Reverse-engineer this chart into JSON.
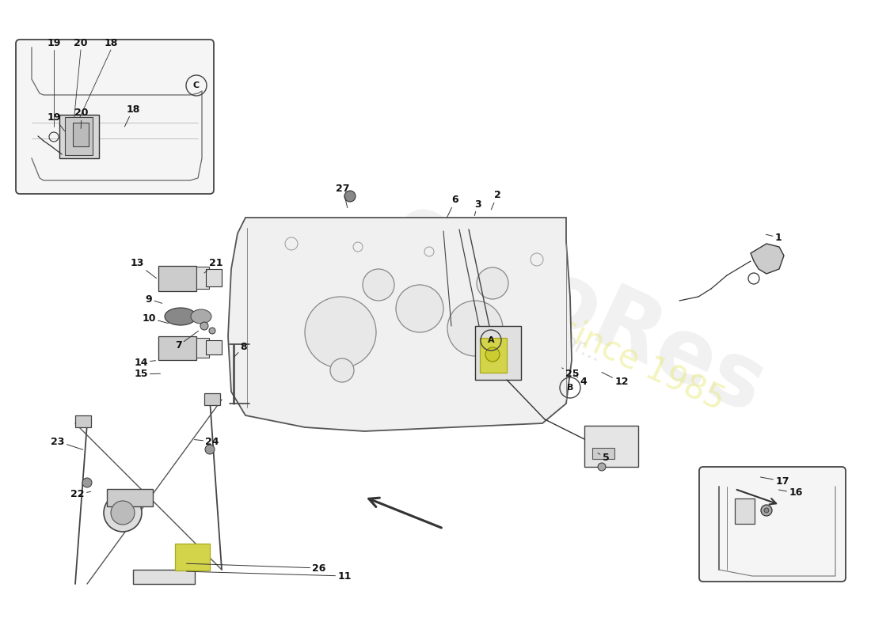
{
  "background_color": "#ffffff",
  "watermark_text": "eufoRes",
  "watermark_year": "since 1985",
  "watermark_passion": "a passion for...",
  "circle_labels": {
    "A": [
      620,
      430
    ],
    "B": [
      720,
      490
    ],
    "C": [
      248,
      108
    ]
  },
  "part_positions": {
    "1": [
      983,
      300,
      962,
      295
    ],
    "2": [
      628,
      247,
      618,
      270
    ],
    "3": [
      603,
      258,
      598,
      278
    ],
    "4": [
      737,
      482,
      720,
      470
    ],
    "5": [
      765,
      578,
      750,
      570
    ],
    "6": [
      575,
      253,
      562,
      280
    ],
    "7": [
      225,
      437,
      255,
      415
    ],
    "8": [
      308,
      438,
      292,
      455
    ],
    "9": [
      188,
      378,
      210,
      385
    ],
    "10": [
      188,
      402,
      218,
      410
    ],
    "11": [
      435,
      728,
      230,
      722
    ],
    "12": [
      785,
      483,
      755,
      468
    ],
    "13": [
      173,
      333,
      202,
      355
    ],
    "14": [
      178,
      458,
      202,
      455
    ],
    "15": [
      178,
      473,
      208,
      472
    ],
    "16": [
      1005,
      623,
      978,
      618
    ],
    "17": [
      988,
      608,
      955,
      602
    ],
    "18": [
      168,
      138,
      155,
      165
    ],
    "19": [
      68,
      148,
      85,
      170
    ],
    "20": [
      103,
      143,
      102,
      168
    ],
    "21": [
      273,
      333,
      258,
      345
    ],
    "22": [
      98,
      625,
      120,
      620
    ],
    "23": [
      73,
      558,
      110,
      570
    ],
    "24": [
      268,
      558,
      240,
      555
    ],
    "25": [
      723,
      473,
      705,
      462
    ],
    "26": [
      403,
      718,
      230,
      712
    ],
    "27": [
      433,
      238,
      440,
      268
    ]
  }
}
